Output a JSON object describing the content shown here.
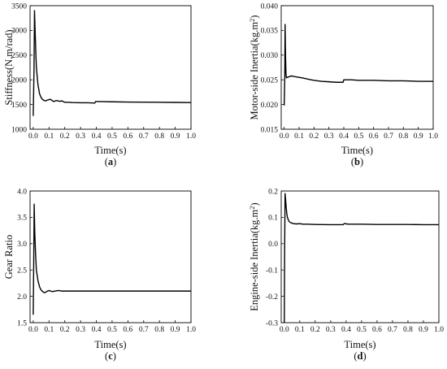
{
  "figure": {
    "panels": [
      {
        "caption_prefix": "(",
        "letter": "a",
        "caption_suffix": ")"
      },
      {
        "caption_prefix": "(",
        "letter": "b",
        "caption_suffix": ")"
      },
      {
        "caption_prefix": "(",
        "letter": "c",
        "caption_suffix": ")"
      },
      {
        "caption_prefix": "(",
        "letter": "d",
        "caption_suffix": ")"
      }
    ]
  },
  "chart_data": [
    {
      "type": "line",
      "xlabel": "Time(s)",
      "ylabel": "Stiffness(N.m/rad)",
      "ylabel_sup": "",
      "ylabel_tail": "",
      "xlim": [
        -0.02,
        1.0
      ],
      "ylim": [
        1000,
        3500
      ],
      "xticks": [
        "0.0",
        "0.1",
        "0.2",
        "0.3",
        "0.4",
        "0.5",
        "0.6",
        "0.7",
        "0.8",
        "0.9",
        "1.0"
      ],
      "yticks": [
        "1000",
        "1500",
        "2000",
        "2500",
        "3000",
        "3500"
      ],
      "series": [
        {
          "x": [
            0.0,
            0.005,
            0.008,
            0.012,
            0.016,
            0.02,
            0.03,
            0.04,
            0.05,
            0.06,
            0.07,
            0.08,
            0.09,
            0.1,
            0.11,
            0.12,
            0.13,
            0.14,
            0.15,
            0.16,
            0.17,
            0.18,
            0.19,
            0.2,
            0.22,
            0.25,
            0.3,
            0.35,
            0.39,
            0.395,
            0.42,
            0.5,
            0.6,
            0.7,
            0.8,
            0.9,
            1.0
          ],
          "y": [
            1270,
            2200,
            3400,
            3000,
            2600,
            2250,
            1900,
            1720,
            1640,
            1600,
            1580,
            1575,
            1590,
            1600,
            1605,
            1580,
            1560,
            1575,
            1580,
            1570,
            1565,
            1575,
            1560,
            1545,
            1545,
            1540,
            1535,
            1535,
            1530,
            1560,
            1560,
            1555,
            1550,
            1548,
            1545,
            1543,
            1540
          ]
        }
      ]
    },
    {
      "type": "line",
      "xlabel": "Time(s)",
      "ylabel": "Motor-side Inertia(kg.m",
      "ylabel_sup": "2",
      "ylabel_tail": ")",
      "xlim": [
        -0.02,
        1.0
      ],
      "ylim": [
        0.015,
        0.04
      ],
      "xticks": [
        "0.0",
        "0.1",
        "0.2",
        "0.3",
        "0.4",
        "0.5",
        "0.6",
        "0.7",
        "0.8",
        "0.9",
        "1.0"
      ],
      "yticks": [
        "0.015",
        "0.020",
        "0.025",
        "0.030",
        "0.035",
        "0.040"
      ],
      "series": [
        {
          "x": [
            0.0,
            0.004,
            0.006,
            0.009,
            0.012,
            0.015,
            0.02,
            0.03,
            0.05,
            0.06,
            0.08,
            0.1,
            0.12,
            0.15,
            0.18,
            0.2,
            0.25,
            0.3,
            0.35,
            0.395,
            0.4,
            0.45,
            0.5,
            0.6,
            0.7,
            0.8,
            0.9,
            1.0
          ],
          "y": [
            0.0198,
            0.0255,
            0.0362,
            0.03,
            0.0262,
            0.0254,
            0.0255,
            0.0256,
            0.0258,
            0.0257,
            0.0256,
            0.0255,
            0.0254,
            0.0252,
            0.025,
            0.0249,
            0.0247,
            0.0246,
            0.0245,
            0.0245,
            0.025,
            0.025,
            0.0249,
            0.0249,
            0.0248,
            0.0248,
            0.0247,
            0.0247
          ]
        }
      ]
    },
    {
      "type": "line",
      "xlabel": "Time(s)",
      "ylabel": "Gear Ratio",
      "ylabel_sup": "",
      "ylabel_tail": "",
      "xlim": [
        -0.02,
        1.0
      ],
      "ylim": [
        1.5,
        4.0
      ],
      "xticks": [
        "0.0",
        "0.1",
        "0.2",
        "0.3",
        "0.4",
        "0.5",
        "0.6",
        "0.7",
        "0.8",
        "0.9",
        "1.0"
      ],
      "yticks": [
        "1.5",
        "2.0",
        "2.5",
        "3.0",
        "3.5",
        "4.0"
      ],
      "series": [
        {
          "x": [
            0.0,
            0.003,
            0.006,
            0.01,
            0.015,
            0.02,
            0.03,
            0.04,
            0.05,
            0.06,
            0.07,
            0.08,
            0.09,
            0.1,
            0.12,
            0.14,
            0.16,
            0.18,
            0.2,
            0.25,
            0.3,
            0.4,
            0.5,
            0.6,
            0.7,
            0.8,
            0.9,
            1.0
          ],
          "y": [
            1.65,
            2.6,
            3.75,
            3.2,
            2.8,
            2.5,
            2.3,
            2.18,
            2.12,
            2.09,
            2.07,
            2.08,
            2.1,
            2.11,
            2.09,
            2.1,
            2.11,
            2.1,
            2.1,
            2.1,
            2.1,
            2.1,
            2.1,
            2.1,
            2.1,
            2.1,
            2.1,
            2.1
          ]
        }
      ]
    },
    {
      "type": "line",
      "xlabel": "Time(s)",
      "ylabel": "Engine-side Inertia(kg.m",
      "ylabel_sup": "2",
      "ylabel_tail": ")",
      "xlim": [
        -0.02,
        1.0
      ],
      "ylim": [
        -0.3,
        0.2
      ],
      "xticks": [
        "0.0",
        "0.1",
        "0.2",
        "0.3",
        "0.4",
        "0.5",
        "0.6",
        "0.7",
        "0.8",
        "0.9",
        "1.0"
      ],
      "yticks": [
        "-0.3",
        "-0.2",
        "-0.1",
        "0.0",
        "0.1",
        "0.2"
      ],
      "series": [
        {
          "x": [
            0.0,
            0.002,
            0.005,
            0.008,
            0.012,
            0.016,
            0.02,
            0.03,
            0.04,
            0.05,
            0.06,
            0.08,
            0.1,
            0.12,
            0.15,
            0.2,
            0.3,
            0.38,
            0.39,
            0.4,
            0.42,
            0.5,
            0.6,
            0.7,
            0.8,
            0.9,
            1.0
          ],
          "y": [
            -0.3,
            -0.05,
            0.19,
            0.17,
            0.14,
            0.115,
            0.1,
            0.085,
            0.08,
            0.078,
            0.076,
            0.075,
            0.076,
            0.074,
            0.074,
            0.073,
            0.072,
            0.072,
            0.077,
            0.075,
            0.074,
            0.074,
            0.073,
            0.073,
            0.073,
            0.072,
            0.072
          ]
        }
      ]
    }
  ]
}
